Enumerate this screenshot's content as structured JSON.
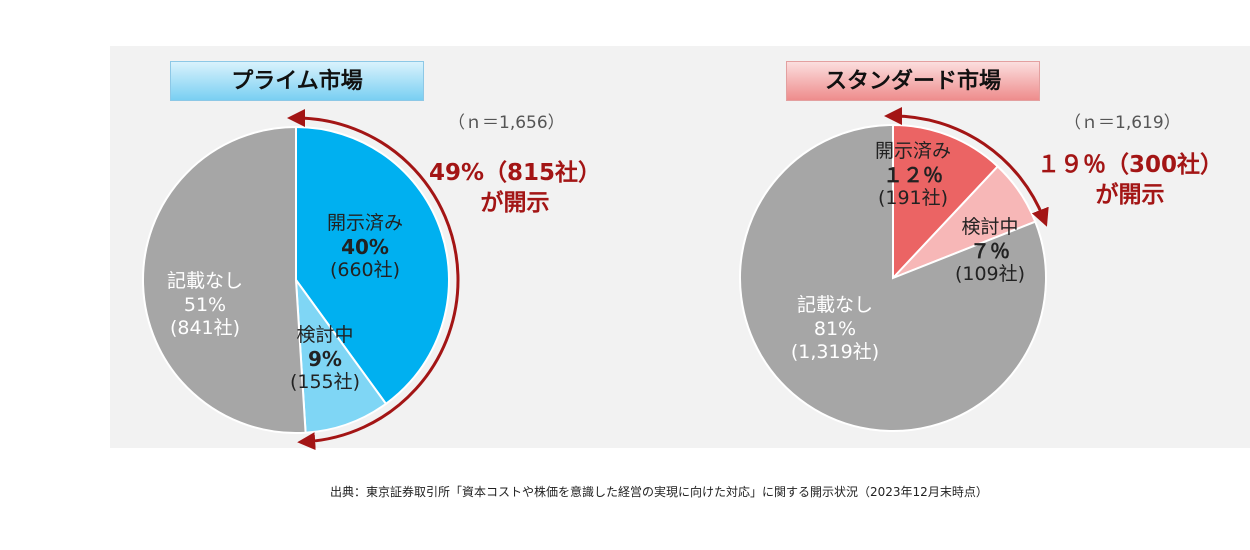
{
  "source": "出典：東京証券取引所「資本コストや株価を意識した経営の実現に向けた対応」に関する開示状況（2023年12月末時点）",
  "colors": {
    "panel": "#f2f2f2",
    "grey": "#a6a6a6",
    "prime_disclosed": "#00b0f0",
    "prime_considering": "#7fd6f5",
    "std_disclosed": "#eb6464",
    "std_considering": "#f7b7b7",
    "arrow": "#a31515"
  },
  "chart_data": [
    {
      "type": "pie",
      "title": "プライム市場",
      "n_label": "（ｎ＝1,656）",
      "total": 1656,
      "slices": [
        {
          "name": "開示済み",
          "percent": 40,
          "percent_label": "40%",
          "count": 660,
          "count_label": "(660社)"
        },
        {
          "name": "検討中",
          "percent": 9,
          "percent_label": "9%",
          "count": 155,
          "count_label": "(155社)"
        },
        {
          "name": "記載なし",
          "percent": 51,
          "percent_label": "51%",
          "count": 841,
          "count_label": "(841社)"
        }
      ],
      "summary_line1": "49%（815社）",
      "summary_line2": "が開示"
    },
    {
      "type": "pie",
      "title": "スタンダード市場",
      "n_label": "（ｎ＝1,619）",
      "total": 1619,
      "slices": [
        {
          "name": "開示済み",
          "percent": 12,
          "percent_label": "１２％",
          "count": 191,
          "count_label": "(191社)"
        },
        {
          "name": "検討中",
          "percent": 7,
          "percent_label": "７％",
          "count": 109,
          "count_label": "(109社)"
        },
        {
          "name": "記載なし",
          "percent": 81,
          "percent_label": "81%",
          "count": 1319,
          "count_label": "(1,319社)"
        }
      ],
      "summary_line1": "１９％（300社）",
      "summary_line2": "が開示"
    }
  ]
}
